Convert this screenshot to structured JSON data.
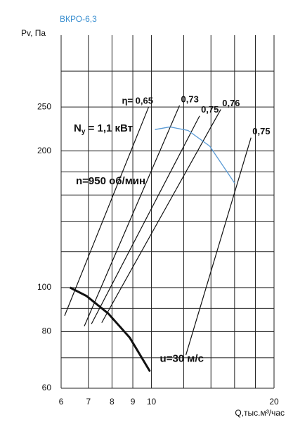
{
  "chart_data": {
    "type": "line",
    "title": "ВКРО-6,3",
    "y_label": "Pv, Па",
    "x_label": "Q,тыс.м³/час",
    "log_x": true,
    "log_y": true,
    "xlim": [
      6,
      20
    ],
    "ylim": [
      60,
      360
    ],
    "xticks": [
      6,
      7,
      8,
      9,
      10,
      20
    ],
    "yticks": [
      60,
      80,
      100,
      200,
      250
    ],
    "xgrid": [
      6,
      7,
      8,
      9,
      10,
      12,
      14,
      16,
      18,
      20
    ],
    "ygrid": [
      60,
      70,
      80,
      90,
      100,
      120,
      140,
      160,
      180,
      200,
      250,
      300
    ],
    "grid": true,
    "efficiency_lines": [
      {
        "label": "η= 0,65",
        "x": [
          6.12,
          9.84
        ],
        "y": [
          86.7,
          250
        ]
      },
      {
        "label": "0,73",
        "x": [
          6.84,
          11.72
        ],
        "y": [
          82.2,
          252
        ]
      },
      {
        "label": "0,75",
        "x": [
          7.12,
          13.13
        ],
        "y": [
          83.1,
          239
        ]
      },
      {
        "label": "0,76",
        "x": [
          7.55,
          14.8
        ],
        "y": [
          83.7,
          247
        ]
      },
      {
        "label": "0,75",
        "x": [
          12.15,
          17.56
        ],
        "y": [
          71,
          214
        ]
      }
    ],
    "fan_curve": {
      "color": "#5b9bd5",
      "x": [
        10.2,
        11.1,
        12.3,
        13.9,
        16
      ],
      "y": [
        223,
        226,
        222,
        205,
        170
      ]
    },
    "speed_curve": {
      "label": "u=30 м/с",
      "color": "#111111",
      "x": [
        6.31,
        6.93,
        7.83,
        8.85,
        9.92
      ],
      "y": [
        100,
        95.8,
        87.7,
        77.5,
        65.3
      ]
    },
    "power": {
      "main": "N",
      "sub": "у",
      "rest": " = 1,1 кВт"
    },
    "speed": "n=950 об/мин"
  }
}
